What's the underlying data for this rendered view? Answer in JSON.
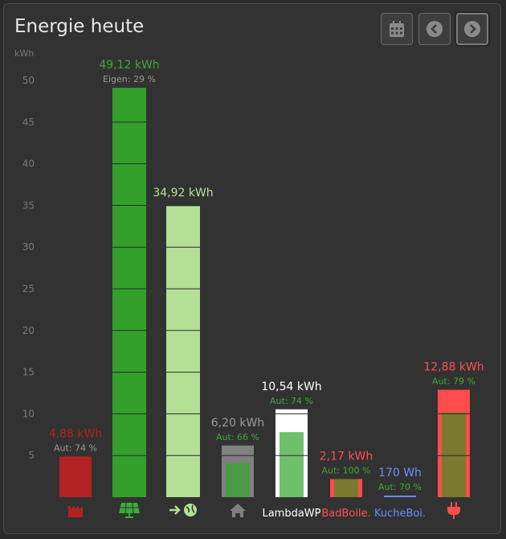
{
  "header": {
    "title": "Energie heute",
    "calendar_icon": "calendar-icon",
    "prev_icon": "chevron-left-circle-icon",
    "next_icon": "chevron-right-circle-icon"
  },
  "chart_data": {
    "type": "bar",
    "title": "Energie heute",
    "ylabel": "kWh",
    "ylim": [
      0,
      50
    ],
    "yticks": [
      5,
      10,
      15,
      20,
      25,
      30,
      35,
      40,
      45,
      50
    ],
    "categories": [
      {
        "icon": "factory-icon",
        "text": "",
        "value": 4.88,
        "label": "4,88 kWh",
        "sublabel": "Aut: 74 %",
        "autarky": 74,
        "color": "#b22222",
        "label_color": "#b22222",
        "sub_color": "#9a9a9a",
        "inner_fraction": null,
        "tick_color": "#b22222"
      },
      {
        "icon": "solar-panel-icon",
        "text": "",
        "value": 49.12,
        "label": "49,12 kWh",
        "sublabel": "Eigen: 29 %",
        "autarky": 29,
        "color": "#33a02c",
        "label_color": "#3daa35",
        "sub_color": "#9a9a9a",
        "inner_fraction": null,
        "tick_color": "#3daa35"
      },
      {
        "icon": "grid-export-icon",
        "text": "",
        "value": 34.92,
        "label": "34,92 kWh",
        "sublabel": "",
        "autarky": null,
        "color": "#b3e094",
        "label_color": "#b3e094",
        "sub_color": "#9a9a9a",
        "inner_fraction": null,
        "tick_color": "#b3e094"
      },
      {
        "icon": "house-icon",
        "text": "",
        "value": 6.2,
        "label": "6,20 kWh",
        "sublabel": "Aut: 66 %",
        "autarky": 66,
        "color": "#808080",
        "label_color": "#9a9a9a",
        "sub_color": "#3daa35",
        "inner_fraction": 0.66,
        "inner_color": "#4a9a45",
        "tick_color": "#808080"
      },
      {
        "icon": "",
        "text": "LambdaWP",
        "value": 10.54,
        "label": "10,54 kWh",
        "sublabel": "Aut: 74 %",
        "autarky": 74,
        "color": "#ffffff",
        "label_color": "#ffffff",
        "sub_color": "#3daa35",
        "inner_fraction": 0.74,
        "inner_color": "#6fc06a",
        "tick_color": "#ffffff"
      },
      {
        "icon": "",
        "text": "BadBoile.",
        "value": 2.17,
        "label": "2,17 kWh",
        "sublabel": "Aut: 100 %",
        "autarky": 100,
        "color": "#ff4d4d",
        "label_color": "#ff5050",
        "sub_color": "#3daa35",
        "inner_fraction": 1.0,
        "inner_color": "#7a7a30",
        "tick_color": "#ff5050"
      },
      {
        "icon": "",
        "text": "KucheBoi.",
        "value": 0.17,
        "label": "170 Wh",
        "sublabel": "Aut: 70 %",
        "autarky": 70,
        "color": "#6a8cff",
        "label_color": "#6a8cff",
        "sub_color": "#3daa35",
        "inner_fraction": null,
        "tick_color": "#6a8cff"
      },
      {
        "icon": "plug-icon",
        "text": "",
        "value": 12.88,
        "label": "12,88 kWh",
        "sublabel": "Aut: 79 %",
        "autarky": 79,
        "color": "#ff4d4d",
        "label_color": "#ff5050",
        "sub_color": "#3daa35",
        "inner_fraction": 0.79,
        "inner_color": "#7a7a30",
        "tick_color": "#ff4d4d"
      }
    ],
    "grid": true,
    "legend": "none"
  }
}
